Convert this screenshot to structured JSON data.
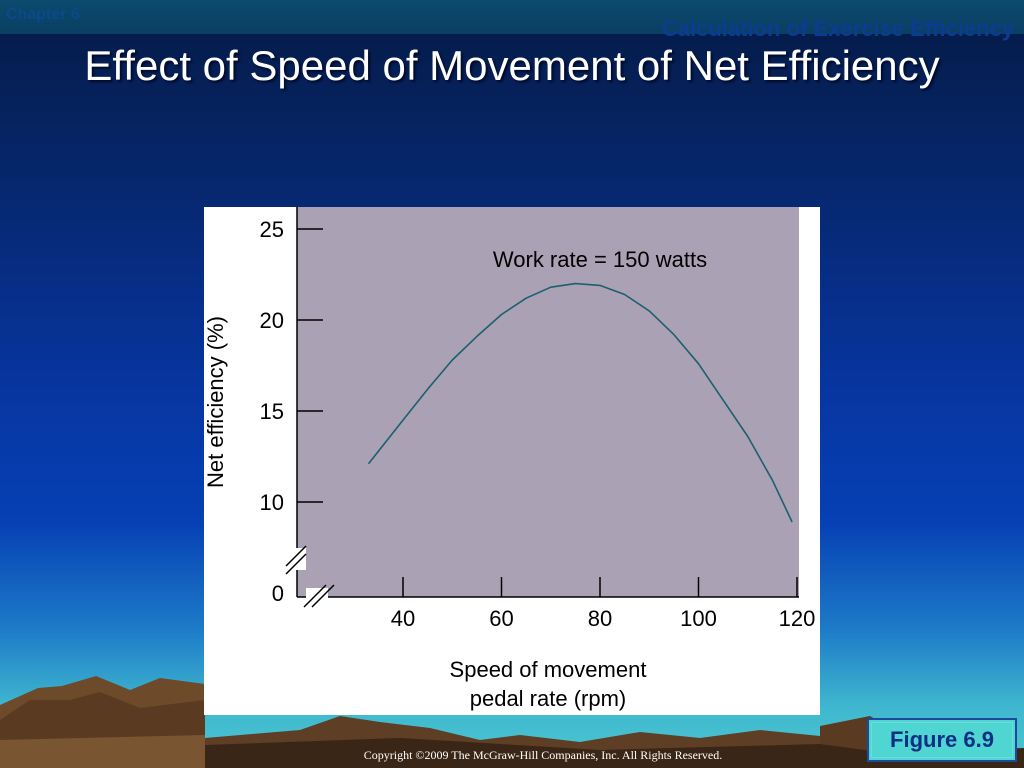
{
  "header": {
    "chapter": "Chapter 6",
    "section": "Calculation of Exercise Efficiency"
  },
  "slide": {
    "title": "Effect of Speed of Movement of Net Efficiency"
  },
  "figure_label": "Figure 6.9",
  "copyright": "Copyright ©2009 The McGraw-Hill Companies, Inc. All Rights Reserved.",
  "chart_data": {
    "type": "line",
    "annotation": "Work rate = 150 watts",
    "xlabel_line1": "Speed of movement",
    "xlabel_line2": "pedal rate (rpm)",
    "ylabel": "Net efficiency (%)",
    "x_ticks": [
      40,
      60,
      80,
      100,
      120
    ],
    "y_ticks": [
      0,
      10,
      15,
      20,
      25
    ],
    "axis_breaks": true,
    "colors": {
      "plot_background": "#aba1b4",
      "line": "#1d5f70",
      "frame": "#ffffff"
    },
    "series": [
      {
        "x": [
          33,
          40,
          45,
          50,
          55,
          60,
          65,
          70,
          75,
          80,
          85,
          90,
          95,
          100,
          105,
          110,
          115,
          119
        ],
        "y": [
          12.1,
          14.5,
          16.2,
          17.8,
          19.1,
          20.3,
          21.2,
          21.8,
          22.0,
          21.9,
          21.4,
          20.5,
          19.2,
          17.6,
          15.6,
          13.6,
          11.2,
          8.9
        ]
      }
    ]
  }
}
